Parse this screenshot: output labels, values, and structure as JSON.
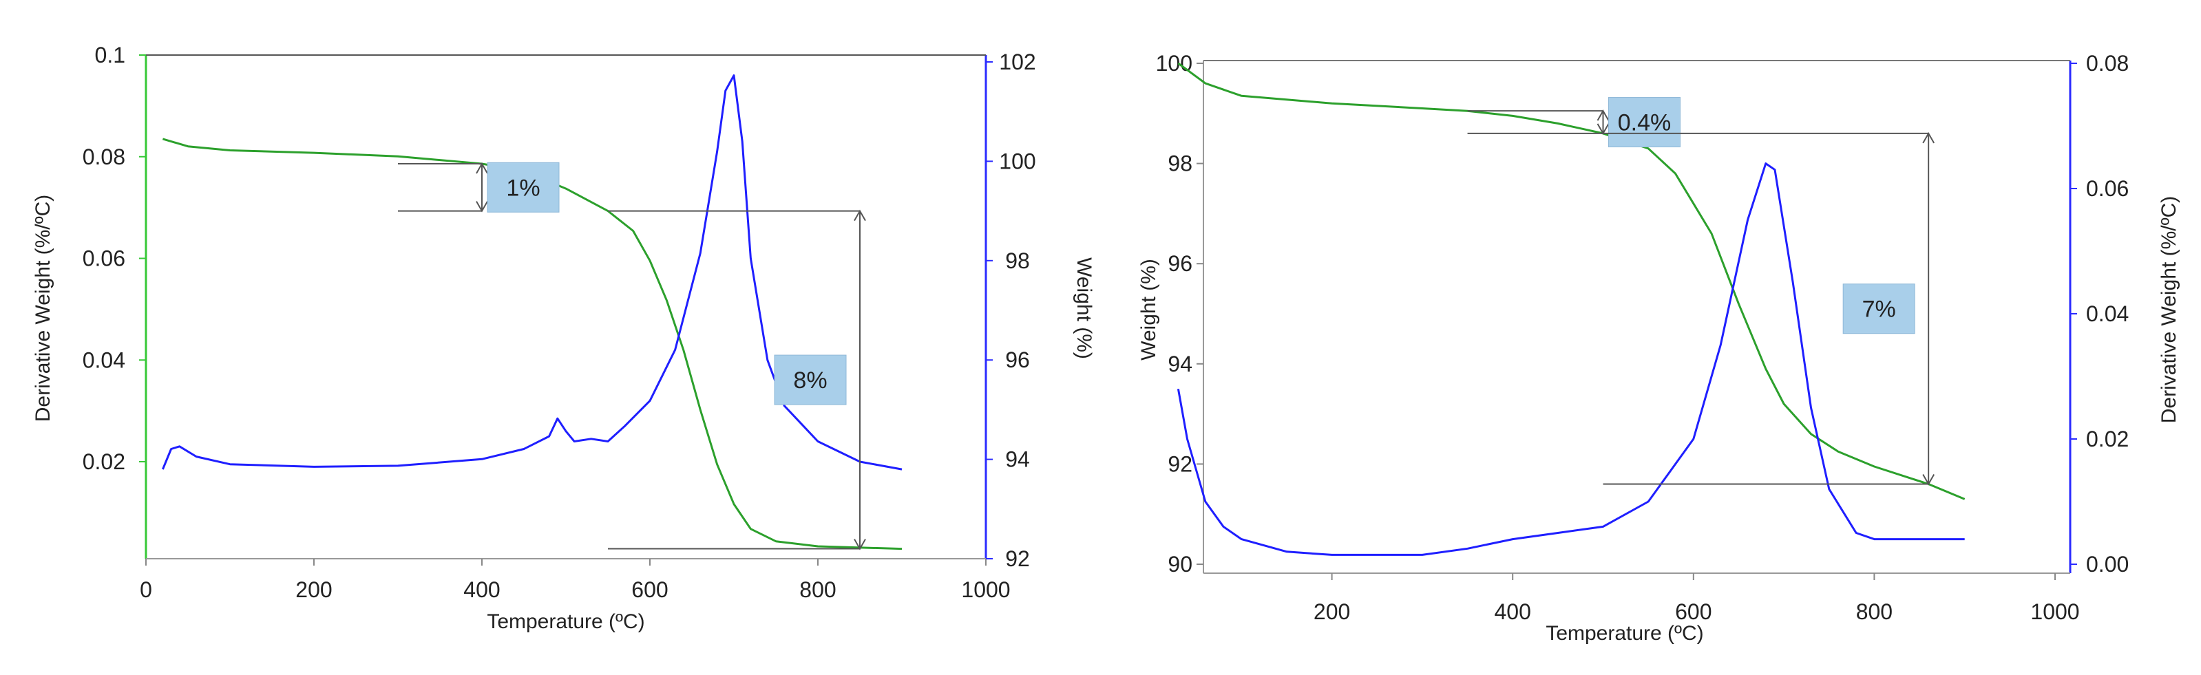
{
  "colors": {
    "weight_curve": "#2ca02c",
    "derivative_curve": "#1f1fff",
    "annotation_box": "#a9cfea",
    "annotation_line": "#555555",
    "green_axis": "#37c837",
    "blue_axis": "#2b2bff"
  },
  "chart_data": [
    {
      "type": "line",
      "title": "",
      "xlabel": "Temperature (ºC)",
      "ylabel_left": "Derivative Weight (%/ºC)",
      "ylabel_right": "Weight (%)",
      "xlim": [
        0,
        1000
      ],
      "ylim_left": [
        0,
        0.1
      ],
      "ylim_right": [
        92,
        102
      ],
      "x_ticks": [
        "0",
        "200",
        "400",
        "600",
        "800",
        "1000"
      ],
      "y_ticks_left": [
        "0.02",
        "0.04",
        "0.06",
        "0.08",
        "0.1"
      ],
      "y_ticks_right": [
        "92",
        "94",
        "96",
        "98",
        "100",
        "102"
      ],
      "grid": false,
      "series": [
        {
          "axis": "right",
          "points": [
            [
              20,
              100.45
            ],
            [
              50,
              100.3
            ],
            [
              100,
              100.22
            ],
            [
              200,
              100.17
            ],
            [
              300,
              100.1
            ],
            [
              400,
              99.95
            ],
            [
              450,
              99.8
            ],
            [
              500,
              99.45
            ],
            [
              550,
              99.0
            ],
            [
              580,
              98.6
            ],
            [
              600,
              98.0
            ],
            [
              620,
              97.2
            ],
            [
              640,
              96.2
            ],
            [
              660,
              95.0
            ],
            [
              680,
              93.9
            ],
            [
              700,
              93.1
            ],
            [
              720,
              92.6
            ],
            [
              750,
              92.35
            ],
            [
              800,
              92.25
            ],
            [
              900,
              92.2
            ]
          ]
        },
        {
          "axis": "left",
          "points": [
            [
              20,
              0.0185
            ],
            [
              30,
              0.0225
            ],
            [
              40,
              0.023
            ],
            [
              60,
              0.021
            ],
            [
              100,
              0.0195
            ],
            [
              200,
              0.019
            ],
            [
              300,
              0.0192
            ],
            [
              400,
              0.0205
            ],
            [
              450,
              0.0225
            ],
            [
              480,
              0.025
            ],
            [
              490,
              0.0285
            ],
            [
              500,
              0.026
            ],
            [
              510,
              0.024
            ],
            [
              530,
              0.0245
            ],
            [
              550,
              0.024
            ],
            [
              570,
              0.027
            ],
            [
              600,
              0.032
            ],
            [
              630,
              0.042
            ],
            [
              660,
              0.061
            ],
            [
              680,
              0.081
            ],
            [
              690,
              0.093
            ],
            [
              700,
              0.096
            ],
            [
              710,
              0.083
            ],
            [
              720,
              0.06
            ],
            [
              740,
              0.04
            ],
            [
              760,
              0.031
            ],
            [
              800,
              0.024
            ],
            [
              850,
              0.02
            ],
            [
              900,
              0.0185
            ]
          ]
        }
      ],
      "annotations": [
        {
          "label": "1%",
          "x": 400,
          "y_top": 99.95,
          "y_bottom": 99.0
        },
        {
          "label": "8%",
          "x": 850,
          "y_top": 99.0,
          "y_bottom": 92.2
        }
      ]
    },
    {
      "type": "line",
      "title": "",
      "xlabel": "Temperature (ºC)",
      "ylabel_left": "Weight (%)",
      "ylabel_right": "Derivative Weight (%/ºC)",
      "xlim": [
        0,
        1000
      ],
      "ylim_left": [
        90,
        100
      ],
      "ylim_right": [
        0,
        0.08
      ],
      "x_ticks": [
        "200",
        "400",
        "600",
        "800",
        "1000"
      ],
      "y_ticks_left": [
        "90",
        "92",
        "94",
        "96",
        "98",
        "100"
      ],
      "y_ticks_right": [
        "0.00",
        "0.02",
        "0.04",
        "0.06",
        "0.08"
      ],
      "grid": false,
      "series": [
        {
          "axis": "left",
          "points": [
            [
              30,
              100.0
            ],
            [
              60,
              99.6
            ],
            [
              100,
              99.35
            ],
            [
              200,
              99.2
            ],
            [
              300,
              99.1
            ],
            [
              350,
              99.05
            ],
            [
              400,
              98.95
            ],
            [
              450,
              98.8
            ],
            [
              500,
              98.6
            ],
            [
              550,
              98.3
            ],
            [
              580,
              97.8
            ],
            [
              600,
              97.2
            ],
            [
              620,
              96.6
            ],
            [
              650,
              95.2
            ],
            [
              680,
              93.9
            ],
            [
              700,
              93.2
            ],
            [
              730,
              92.6
            ],
            [
              760,
              92.25
            ],
            [
              800,
              91.95
            ],
            [
              860,
              91.6
            ],
            [
              900,
              91.3
            ]
          ]
        },
        {
          "axis": "right",
          "points": [
            [
              30,
              0.028
            ],
            [
              40,
              0.02
            ],
            [
              60,
              0.01
            ],
            [
              80,
              0.006
            ],
            [
              100,
              0.004
            ],
            [
              150,
              0.002
            ],
            [
              200,
              0.0015
            ],
            [
              300,
              0.0015
            ],
            [
              350,
              0.0025
            ],
            [
              400,
              0.004
            ],
            [
              450,
              0.005
            ],
            [
              500,
              0.006
            ],
            [
              550,
              0.01
            ],
            [
              600,
              0.02
            ],
            [
              630,
              0.035
            ],
            [
              660,
              0.055
            ],
            [
              680,
              0.064
            ],
            [
              690,
              0.063
            ],
            [
              710,
              0.045
            ],
            [
              730,
              0.025
            ],
            [
              750,
              0.012
            ],
            [
              780,
              0.005
            ],
            [
              800,
              0.004
            ],
            [
              900,
              0.004
            ]
          ]
        }
      ],
      "annotations": [
        {
          "label": "0.4%",
          "x": 500,
          "y_top": 99.05,
          "y_bottom": 98.6
        },
        {
          "label": "7%",
          "x": 860,
          "y_top": 98.6,
          "y_bottom": 91.6
        }
      ]
    }
  ]
}
